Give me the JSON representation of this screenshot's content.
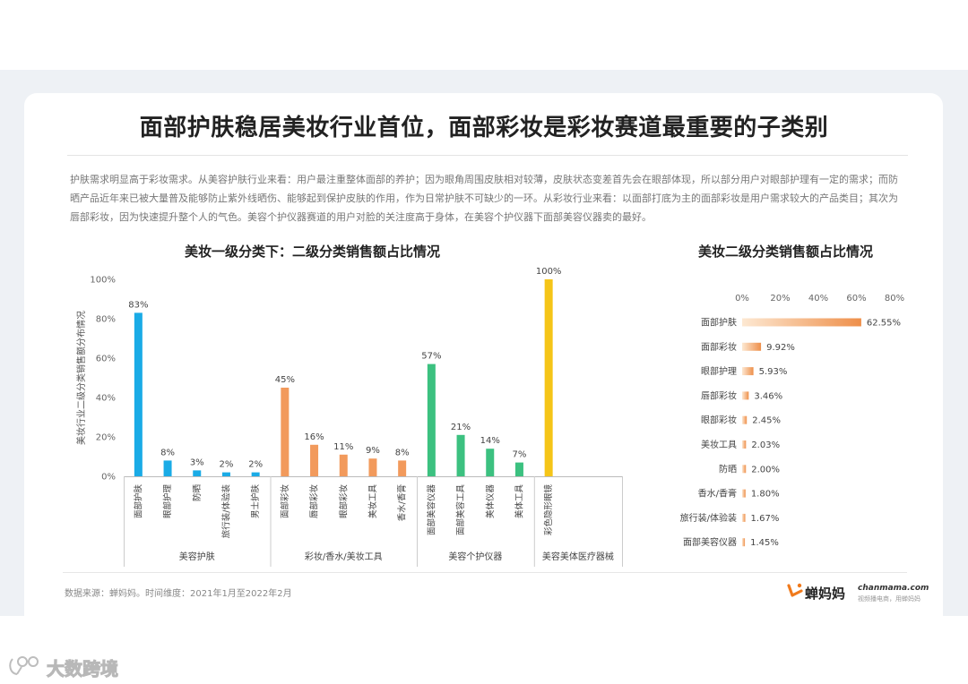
{
  "title": "面部护肤稳居美妆行业首位，面部彩妆是彩妆赛道最重要的子类别",
  "description": "护肤需求明显高于彩妆需求。从美容护肤行业来看：用户最注重整体面部的养护；因为眼角周围皮肤相对较薄，皮肤状态变差首先会在眼部体现，所以部分用户对眼部护理有一定的需求；而防晒产品近年来已被大量普及能够防止紫外线晒伤、能够起到保护皮肤的作用，作为日常护肤不可缺少的一环。从彩妆行业来看：以面部打底为主的面部彩妆是用户需求较大的产品类目；其次为唇部彩妆，因为快速提升整个人的气色。美容个护仪器赛道的用户对脸的关注度高于身体，在美容个护仪器下面部美容仪器卖的最好。",
  "chart_data": [
    {
      "type": "bar",
      "title": "美妆一级分类下：二级分类销售额占比情况",
      "ylabel": "美妆行业二级分类销售额分布情况",
      "ylim": [
        0,
        100
      ],
      "yticks": [
        "0%",
        "20%",
        "40%",
        "60%",
        "80%",
        "100%"
      ],
      "groups": [
        {
          "name": "美容护肤",
          "color": "#1aabe6",
          "categories": [
            "面部护肤",
            "眼部护理",
            "防晒",
            "旅行装/体验装",
            "男士护肤"
          ],
          "values": [
            83,
            8,
            3,
            2,
            2
          ]
        },
        {
          "name": "彩妆/香水/美妆工具",
          "color": "#f29a5c",
          "categories": [
            "面部彩妆",
            "唇部彩妆",
            "眼部彩妆",
            "美妆工具",
            "香水/香膏"
          ],
          "values": [
            45,
            16,
            11,
            9,
            8
          ]
        },
        {
          "name": "美容个护仪器",
          "color": "#3cc180",
          "categories": [
            "面部美容仪器",
            "面部美容工具",
            "美体仪器",
            "美体工具"
          ],
          "values": [
            57,
            21,
            14,
            7
          ]
        },
        {
          "name": "美容美体医疗器械",
          "color": "#f5c518",
          "categories": [
            "彩色隐形眼镜"
          ],
          "values": [
            100
          ]
        }
      ]
    },
    {
      "type": "bar",
      "orientation": "horizontal",
      "title": "美妆二级分类销售额占比情况",
      "xlim": [
        0,
        80
      ],
      "xticks": [
        "0%",
        "20%",
        "40%",
        "60%",
        "80%"
      ],
      "categories": [
        "面部护肤",
        "面部彩妆",
        "眼部护理",
        "唇部彩妆",
        "眼部彩妆",
        "美妆工具",
        "防晒",
        "香水/香膏",
        "旅行装/体验装",
        "面部美容仪器"
      ],
      "values": [
        62.55,
        9.92,
        5.93,
        3.46,
        2.45,
        2.03,
        2.0,
        1.8,
        1.67,
        1.45
      ],
      "labels": [
        "62.55%",
        "9.92%",
        "5.93%",
        "3.46%",
        "2.45%",
        "2.03%",
        "2.00%",
        "1.80%",
        "1.67%",
        "1.45%"
      ],
      "color_start": "#fde8d2",
      "color_end": "#ee8f4a"
    }
  ],
  "footer": {
    "source": "数据来源：蝉妈妈。时间维度：2021年1月至2022年2月",
    "brand_name": "蝉妈妈",
    "brand_domain": "chanmama.com",
    "brand_slogan": "视频播电商，用蝉妈妈",
    "brand_color": "#f07a1c"
  },
  "watermark": {
    "text": "大数跨境"
  }
}
